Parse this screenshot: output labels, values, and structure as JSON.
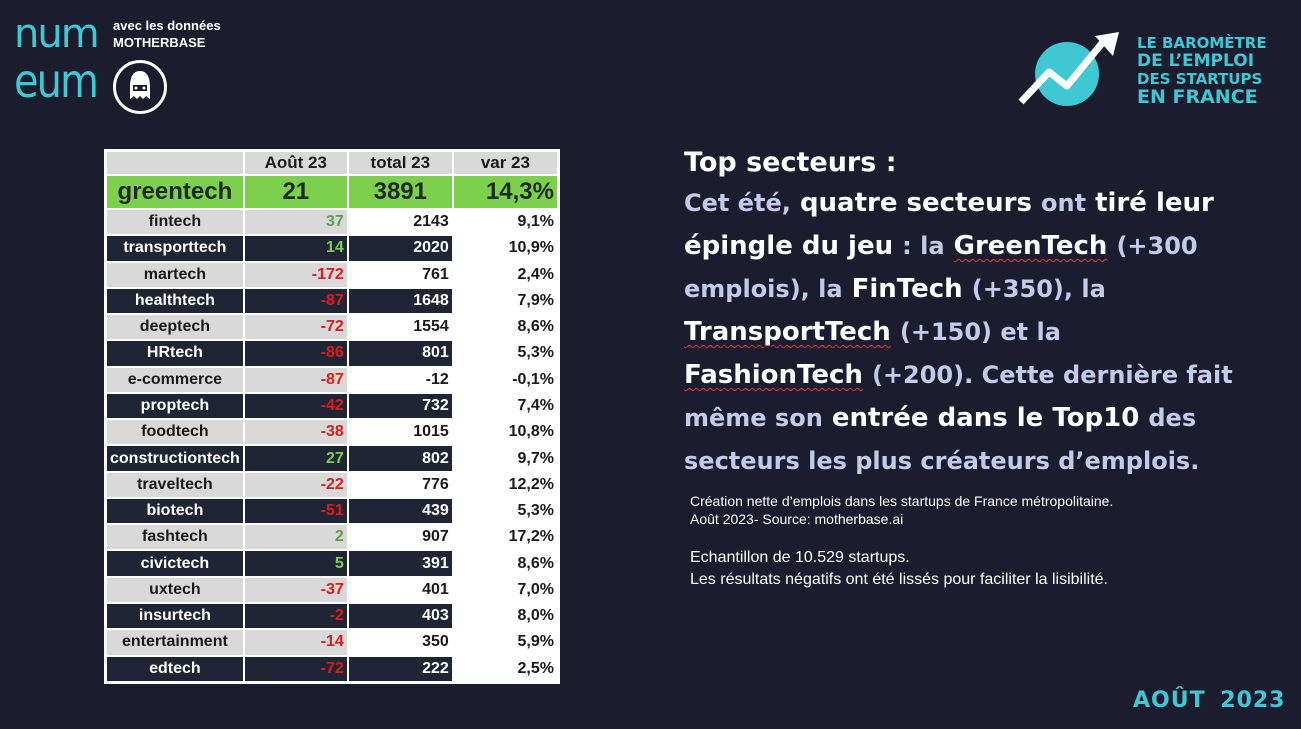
{
  "logo": {
    "line1": "num",
    "line2": "eum"
  },
  "partner": {
    "line1": "avec les données",
    "line2": "MOTHERBASE"
  },
  "barometre": {
    "line1": "LE BAROMÈTRE",
    "line2": "DE L’EMPLOI",
    "line3": "DES STARTUPS",
    "line4": "EN FRANCE"
  },
  "table": {
    "headers": [
      "",
      "Août 23",
      "total 23",
      "var 23"
    ],
    "highlight": {
      "name": "greentech",
      "aout": "21",
      "total": "3891",
      "var": "14,3%"
    },
    "rows": [
      {
        "name": "fintech",
        "aout": "37",
        "total": "2143",
        "var": "9,1%",
        "sign": "pos"
      },
      {
        "name": "transporttech",
        "aout": "14",
        "total": "2020",
        "var": "10,9%",
        "sign": "pos"
      },
      {
        "name": "martech",
        "aout": "-172",
        "total": "761",
        "var": "2,4%",
        "sign": "neg"
      },
      {
        "name": "healthtech",
        "aout": "-87",
        "total": "1648",
        "var": "7,9%",
        "sign": "neg"
      },
      {
        "name": "deeptech",
        "aout": "-72",
        "total": "1554",
        "var": "8,6%",
        "sign": "neg"
      },
      {
        "name": "HRtech",
        "aout": "-86",
        "total": "801",
        "var": "5,3%",
        "sign": "neg"
      },
      {
        "name": "e-commerce",
        "aout": "-87",
        "total": "-12",
        "var": "-0,1%",
        "sign": "neg"
      },
      {
        "name": "proptech",
        "aout": "-42",
        "total": "732",
        "var": "7,4%",
        "sign": "neg"
      },
      {
        "name": "foodtech",
        "aout": "-38",
        "total": "1015",
        "var": "10,8%",
        "sign": "neg"
      },
      {
        "name": "constructiontech",
        "aout": "27",
        "total": "802",
        "var": "9,7%",
        "sign": "pos"
      },
      {
        "name": "traveltech",
        "aout": "-22",
        "total": "776",
        "var": "12,2%",
        "sign": "neg"
      },
      {
        "name": "biotech",
        "aout": "-51",
        "total": "439",
        "var": "5,3%",
        "sign": "neg"
      },
      {
        "name": "fashtech",
        "aout": "2",
        "total": "907",
        "var": "17,2%",
        "sign": "pos"
      },
      {
        "name": "civictech",
        "aout": "5",
        "total": "391",
        "var": "8,6%",
        "sign": "pos"
      },
      {
        "name": "uxtech",
        "aout": "-37",
        "total": "401",
        "var": "7,0%",
        "sign": "neg"
      },
      {
        "name": "insurtech",
        "aout": "-2",
        "total": "403",
        "var": "8,0%",
        "sign": "neg"
      },
      {
        "name": "entertainment",
        "aout": "-14",
        "total": "350",
        "var": "5,9%",
        "sign": "neg"
      },
      {
        "name": "edtech",
        "aout": "-72",
        "total": "222",
        "var": "2,5%",
        "sign": "neg"
      }
    ]
  },
  "headline": {
    "title": "Top secteurs :",
    "s1": "Cet été,",
    "s2": "quatre secteurs",
    "s3": "ont",
    "s4": "tiré leur épingle du jeu",
    "s5": ": la",
    "s6": "GreenTech",
    "s7": "(+300 emplois), la",
    "s8": "FinTech",
    "s9": "(+350), la",
    "s10": "TransportTech",
    "s11": "(+150) et la",
    "s12": "FashionTech",
    "s13": "(+200)",
    "s14": ". Cette dernière fait même son",
    "s15": "entrée dans le Top10",
    "s16": "des secteurs les plus créateurs d’emplois."
  },
  "notes": {
    "line1": "Création nette d’emplois dans les startups de France métropolitaine.",
    "line2": "Août 2023- Source: motherbase.ai",
    "line3": "Echantillon de 10.529 startups.",
    "line4": "Les résultats négatifs ont été lissés pour faciliter la lisibilité."
  },
  "date": "AOÛT 2023",
  "colors": {
    "background": "#1b1c2e",
    "accent": "#3fc8d4",
    "highlight_green": "#7dd04d",
    "negative_red": "#e01a1a"
  }
}
